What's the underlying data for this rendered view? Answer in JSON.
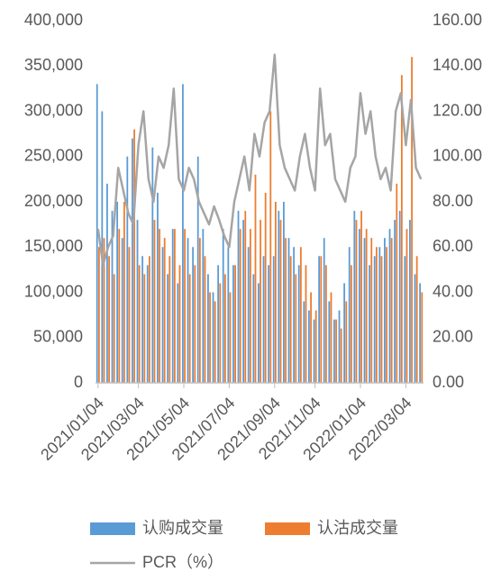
{
  "chart_data": {
    "type": "bar-line",
    "categories": [
      "2021/01/04",
      null,
      null,
      null,
      null,
      null,
      null,
      null,
      "2021/03/04",
      null,
      null,
      null,
      null,
      null,
      null,
      null,
      null,
      "2021/05/04",
      null,
      null,
      null,
      null,
      null,
      null,
      null,
      null,
      "2021/07/04",
      null,
      null,
      null,
      null,
      null,
      null,
      null,
      null,
      "2021/09/04",
      null,
      null,
      null,
      null,
      null,
      null,
      null,
      "2021/11/04",
      null,
      null,
      null,
      null,
      null,
      null,
      null,
      null,
      "2022/01/04",
      null,
      null,
      null,
      null,
      null,
      null,
      null,
      null,
      "2022/03/04",
      null,
      null,
      null
    ],
    "series": [
      {
        "name": "认购成交量",
        "color": "#5b9bd5",
        "kind": "bar",
        "values": [
          330000,
          300000,
          220000,
          190000,
          200000,
          160000,
          250000,
          270000,
          180000,
          140000,
          130000,
          260000,
          210000,
          150000,
          120000,
          170000,
          110000,
          330000,
          160000,
          150000,
          250000,
          170000,
          120000,
          100000,
          130000,
          170000,
          150000,
          130000,
          190000,
          180000,
          150000,
          120000,
          110000,
          140000,
          130000,
          140000,
          190000,
          200000,
          160000,
          150000,
          130000,
          90000,
          80000,
          70000,
          140000,
          160000,
          90000,
          70000,
          80000,
          110000,
          150000,
          190000,
          170000,
          160000,
          130000,
          140000,
          150000,
          160000,
          170000,
          180000,
          190000,
          140000,
          180000,
          120000,
          110000
        ]
      },
      {
        "name": "认沽成交量",
        "color": "#ed7d31",
        "kind": "bar",
        "values": [
          150000,
          160000,
          140000,
          120000,
          170000,
          200000,
          150000,
          280000,
          130000,
          120000,
          140000,
          180000,
          170000,
          160000,
          140000,
          170000,
          130000,
          170000,
          120000,
          130000,
          160000,
          140000,
          100000,
          90000,
          110000,
          120000,
          100000,
          130000,
          170000,
          190000,
          170000,
          230000,
          180000,
          210000,
          300000,
          200000,
          180000,
          160000,
          140000,
          120000,
          150000,
          130000,
          100000,
          80000,
          140000,
          130000,
          100000,
          70000,
          60000,
          90000,
          130000,
          180000,
          190000,
          170000,
          160000,
          150000,
          140000,
          150000,
          160000,
          220000,
          340000,
          170000,
          360000,
          140000,
          100000
        ]
      },
      {
        "name": "PCR（%）",
        "color": "#a5a5a5",
        "kind": "line",
        "axis": "y2",
        "values": [
          68,
          52,
          60,
          65,
          95,
          85,
          75,
          70,
          105,
          120,
          90,
          80,
          100,
          95,
          105,
          130,
          90,
          85,
          95,
          90,
          80,
          75,
          70,
          78,
          72,
          65,
          60,
          80,
          90,
          100,
          85,
          110,
          100,
          115,
          120,
          145,
          105,
          95,
          90,
          85,
          100,
          110,
          95,
          85,
          130,
          105,
          110,
          90,
          85,
          80,
          95,
          100,
          128,
          110,
          120,
          100,
          90,
          95,
          85,
          120,
          128,
          105,
          125,
          95,
          90
        ]
      }
    ],
    "ylim": [
      0,
      400000
    ],
    "yticks": [
      0,
      {
        "value": 50000,
        "label": "50,000"
      },
      {
        "value": 100000,
        "label": "100,000"
      },
      {
        "value": 150000,
        "label": "150,000"
      },
      {
        "value": 200000,
        "label": "200,000"
      },
      {
        "value": 250000,
        "label": "250,000"
      },
      {
        "value": 300000,
        "label": "300,000"
      },
      {
        "value": 350000,
        "label": "350,000"
      },
      {
        "value": 400000,
        "label": "400,000"
      }
    ],
    "y2lim": [
      0,
      160
    ],
    "y2ticks": [
      {
        "value": 0,
        "label": "0.00"
      },
      {
        "value": 20,
        "label": "20.00"
      },
      {
        "value": 40,
        "label": "40.00"
      },
      {
        "value": 60,
        "label": "60.00"
      },
      {
        "value": 80,
        "label": "80.00"
      },
      {
        "value": 100,
        "label": "100.00"
      },
      {
        "value": 120,
        "label": "120.00"
      },
      {
        "value": 140,
        "label": "140.00"
      },
      {
        "value": 160,
        "label": "160.00"
      }
    ],
    "grid": false,
    "legend": "bottom"
  }
}
